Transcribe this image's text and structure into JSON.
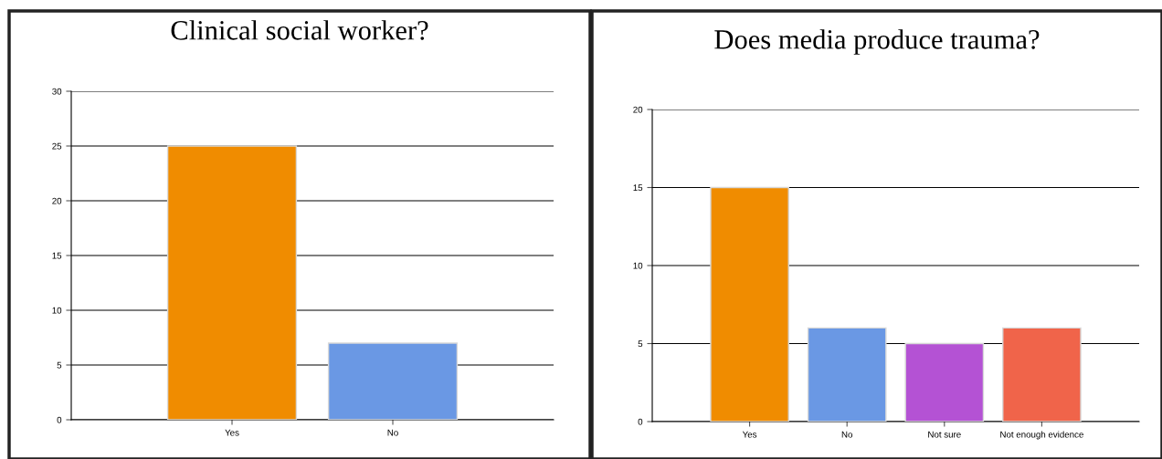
{
  "chart_data": [
    {
      "type": "bar",
      "title": "Clinical social worker?",
      "categories": [
        "Yes",
        "No"
      ],
      "values": [
        25,
        7
      ],
      "colors": [
        "#f08c00",
        "#6a98e4"
      ],
      "ylim": [
        0,
        30
      ],
      "yticks": [
        0,
        5,
        10,
        15,
        20,
        25,
        30
      ],
      "grid": "y",
      "legend": false
    },
    {
      "type": "bar",
      "title": "Does media produce trauma?",
      "categories": [
        "Yes",
        "No",
        "Not sure",
        "Not enough evidence"
      ],
      "values": [
        15,
        6,
        5,
        6
      ],
      "colors": [
        "#f08c00",
        "#6a98e4",
        "#b452d4",
        "#f0644a"
      ],
      "ylim": [
        0,
        20
      ],
      "yticks": [
        0,
        5,
        10,
        15,
        20
      ],
      "grid": "y",
      "legend": false
    }
  ]
}
